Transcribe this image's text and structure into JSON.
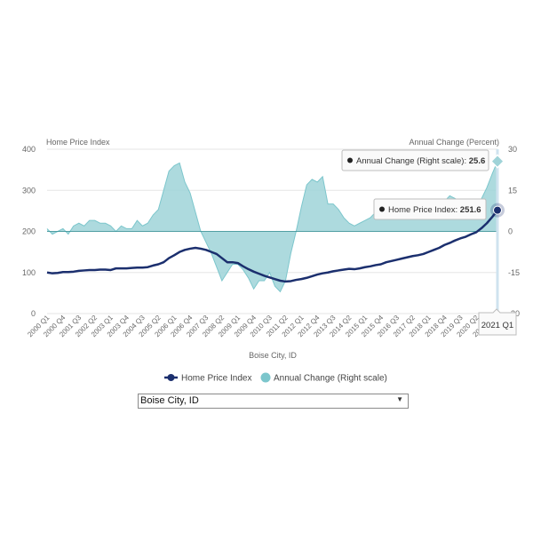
{
  "chart_data": {
    "type": "line",
    "xlabel": "Boise City, ID",
    "ylabel_left": "Home Price Index",
    "ylabel_right": "Annual Change (Percent)",
    "ylim_left": [
      0,
      400
    ],
    "ylim_right": [
      -30,
      30
    ],
    "yticks_left": [
      "0",
      "100",
      "200",
      "300",
      "400"
    ],
    "yticks_right": [
      "-30",
      "-15",
      "0",
      "15",
      "30"
    ],
    "x_tick_labels": [
      "2000 Q1",
      "2000 Q4",
      "2001 Q3",
      "2002 Q2",
      "2003 Q1",
      "2003 Q4",
      "2004 Q3",
      "2005 Q2",
      "2006 Q1",
      "2006 Q4",
      "2007 Q3",
      "2008 Q2",
      "2009 Q1",
      "2009 Q4",
      "2010 Q3",
      "2011 Q2",
      "2012 Q1",
      "2012 Q4",
      "2013 Q3",
      "2014 Q2",
      "2015 Q1",
      "2015 Q4",
      "2016 Q3",
      "2017 Q2",
      "2018 Q1",
      "2018 Q4",
      "2019 Q3",
      "2020 Q2",
      "2021 Q1"
    ],
    "x_start": "2000 Q1",
    "legend_position": "bottom",
    "grid": "horizontal",
    "series": [
      {
        "name": "Home Price Index",
        "axis": "left",
        "style": "line",
        "color": "#1b2f6e",
        "values": [
          100,
          98,
          99,
          101,
          101,
          102,
          104,
          105,
          106,
          106,
          107,
          107,
          106,
          110,
          110,
          110,
          111,
          112,
          112,
          113,
          117,
          120,
          125,
          135,
          142,
          150,
          155,
          158,
          160,
          158,
          155,
          150,
          145,
          135,
          125,
          125,
          123,
          115,
          108,
          102,
          97,
          92,
          88,
          84,
          80,
          78,
          79,
          82,
          84,
          87,
          91,
          95,
          98,
          100,
          103,
          105,
          107,
          109,
          108,
          110,
          113,
          115,
          118,
          120,
          125,
          128,
          131,
          134,
          137,
          140,
          142,
          145,
          150,
          155,
          160,
          167,
          172,
          178,
          183,
          187,
          193,
          198,
          208,
          220,
          235,
          251.6
        ]
      },
      {
        "name": "Annual Change (Right scale)",
        "axis": "right",
        "style": "area",
        "color": "#7cc6cc",
        "values": [
          1,
          -1,
          0,
          1,
          -1,
          2,
          3,
          2,
          4,
          4,
          3,
          3,
          2,
          0,
          2,
          1,
          1,
          4,
          2,
          3,
          6,
          8,
          15,
          22,
          24,
          25,
          18,
          14,
          7,
          0,
          -4,
          -8,
          -13,
          -18,
          -15,
          -12,
          -12,
          -14,
          -17,
          -21,
          -18,
          -18,
          -15,
          -20,
          -22,
          -18,
          -8,
          0,
          9,
          17,
          19,
          18,
          20,
          10,
          10,
          8,
          5,
          3,
          2,
          3,
          4,
          5,
          7,
          8,
          6,
          8,
          8,
          7,
          8,
          9,
          8,
          8,
          8,
          8,
          9,
          11,
          13,
          12,
          11,
          11,
          8,
          9,
          12,
          16,
          21,
          25.6
        ]
      }
    ],
    "tooltips": {
      "annual_change": {
        "label": "Annual Change (Right scale): ",
        "value": "25.6"
      },
      "home_price_index": {
        "label": "Home Price Index: ",
        "value": "251.6"
      },
      "x_crosshair": "2021 Q1"
    }
  },
  "selector": {
    "value": "Boise City, ID",
    "arrow": "▼"
  },
  "colors": {
    "line": "#1b2f6e",
    "area_fill": "#9fd3d8",
    "area_stroke": "#7cc6cc",
    "grid": "#e6e6e6"
  }
}
